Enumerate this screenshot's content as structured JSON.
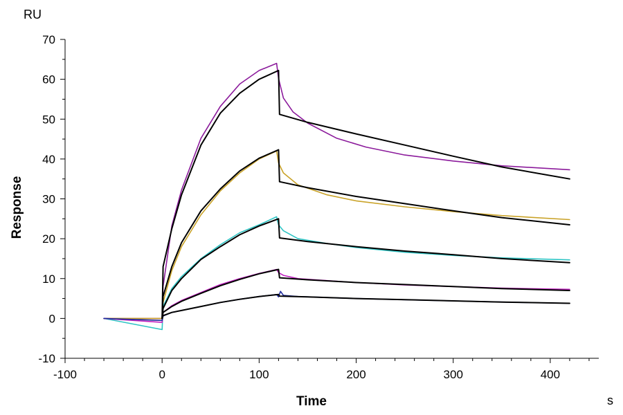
{
  "chart_data": {
    "type": "line",
    "title": "",
    "xlabel": "Time",
    "ylabel": "Response",
    "x_unit": "s",
    "y_unit": "RU",
    "xlim": [
      -100,
      450
    ],
    "ylim": [
      -10,
      70
    ],
    "x_ticks": [
      -100,
      0,
      100,
      200,
      300,
      400
    ],
    "y_ticks": [
      -10,
      0,
      10,
      20,
      30,
      40,
      50,
      60,
      70
    ],
    "x_tick_labels": [
      "-100",
      "0",
      "100",
      "200",
      "300",
      "400"
    ],
    "y_tick_labels": [
      "-10",
      "0",
      "10",
      "20",
      "30",
      "40",
      "50",
      "60",
      "70"
    ],
    "grid": false,
    "legend": "none",
    "series": [
      {
        "color": "#8B1A9B",
        "role": "measured",
        "points": [
          [
            -60,
            0
          ],
          [
            0,
            0
          ],
          [
            1,
            8
          ],
          [
            10,
            23.2
          ],
          [
            20,
            32.2
          ],
          [
            40,
            45.2
          ],
          [
            60,
            53.2
          ],
          [
            80,
            58.8
          ],
          [
            100,
            62.2
          ],
          [
            118,
            64
          ],
          [
            120,
            60.2
          ],
          [
            125,
            55.3
          ],
          [
            135,
            51.8
          ],
          [
            150,
            49
          ],
          [
            180,
            45.2
          ],
          [
            210,
            43
          ],
          [
            250,
            41
          ],
          [
            300,
            39.5
          ],
          [
            350,
            38.3
          ],
          [
            420,
            37.3
          ]
        ]
      },
      {
        "color": "#C9A227",
        "role": "measured",
        "points": [
          [
            -60,
            0
          ],
          [
            0,
            0
          ],
          [
            1,
            4
          ],
          [
            10,
            12
          ],
          [
            20,
            18
          ],
          [
            40,
            26
          ],
          [
            60,
            32
          ],
          [
            80,
            36.5
          ],
          [
            100,
            40
          ],
          [
            118,
            42
          ],
          [
            120,
            39
          ],
          [
            125,
            36.5
          ],
          [
            140,
            33.5
          ],
          [
            170,
            31
          ],
          [
            200,
            29.5
          ],
          [
            250,
            28
          ],
          [
            300,
            26.8
          ],
          [
            350,
            25.8
          ],
          [
            420,
            24.8
          ]
        ]
      },
      {
        "color": "#2EC4C4",
        "role": "measured",
        "points": [
          [
            -60,
            0
          ],
          [
            0,
            -2.8
          ],
          [
            1,
            3
          ],
          [
            10,
            7.5
          ],
          [
            20,
            10.5
          ],
          [
            40,
            15
          ],
          [
            60,
            18.5
          ],
          [
            80,
            21.5
          ],
          [
            100,
            23.5
          ],
          [
            118,
            25.5
          ],
          [
            120,
            23.5
          ],
          [
            125,
            22
          ],
          [
            140,
            20
          ],
          [
            170,
            18.8
          ],
          [
            200,
            17.8
          ],
          [
            250,
            16.6
          ],
          [
            300,
            15.8
          ],
          [
            350,
            15.2
          ],
          [
            420,
            14.7
          ]
        ]
      },
      {
        "color": "#C020C0",
        "role": "measured",
        "points": [
          [
            -60,
            0
          ],
          [
            0,
            -1
          ],
          [
            1,
            1.5
          ],
          [
            10,
            3.2
          ],
          [
            20,
            4.5
          ],
          [
            40,
            6.5
          ],
          [
            60,
            8.5
          ],
          [
            80,
            10
          ],
          [
            100,
            11.3
          ],
          [
            118,
            12.3
          ],
          [
            120,
            11.5
          ],
          [
            125,
            10.8
          ],
          [
            140,
            10
          ],
          [
            200,
            9
          ],
          [
            250,
            8.4
          ],
          [
            300,
            8
          ],
          [
            350,
            7.6
          ],
          [
            420,
            7.3
          ]
        ]
      },
      {
        "color": "#1E2A9C",
        "role": "measured",
        "points": [
          [
            -60,
            0
          ],
          [
            0,
            -0.5
          ],
          [
            1,
            0.6
          ],
          [
            10,
            1.5
          ],
          [
            20,
            2
          ],
          [
            40,
            3
          ],
          [
            60,
            4
          ],
          [
            80,
            4.8
          ],
          [
            100,
            5.5
          ],
          [
            118,
            6
          ],
          [
            120,
            5.4
          ],
          [
            122,
            6.8
          ],
          [
            125,
            5.8
          ],
          [
            140,
            5.5
          ],
          [
            200,
            5
          ],
          [
            250,
            4.7
          ],
          [
            300,
            4.4
          ],
          [
            350,
            4.1
          ],
          [
            420,
            3.8
          ]
        ]
      },
      {
        "color": "#000000",
        "role": "fit",
        "points": [
          [
            0,
            0
          ],
          [
            1,
            13
          ],
          [
            10,
            22.5
          ],
          [
            20,
            31
          ],
          [
            40,
            43.5
          ],
          [
            60,
            51.5
          ],
          [
            80,
            56.5
          ],
          [
            100,
            60
          ],
          [
            120,
            62.2
          ],
          [
            121,
            51.2
          ],
          [
            150,
            49.2
          ],
          [
            200,
            46.3
          ],
          [
            250,
            43.5
          ],
          [
            300,
            40.7
          ],
          [
            350,
            38
          ],
          [
            420,
            35
          ]
        ]
      },
      {
        "color": "#000000",
        "role": "fit",
        "points": [
          [
            0,
            0
          ],
          [
            1,
            5.5
          ],
          [
            10,
            13
          ],
          [
            20,
            19
          ],
          [
            40,
            27
          ],
          [
            60,
            32.5
          ],
          [
            80,
            37
          ],
          [
            100,
            40.2
          ],
          [
            120,
            42.3
          ],
          [
            121,
            34.3
          ],
          [
            150,
            32.8
          ],
          [
            200,
            30.6
          ],
          [
            250,
            28.8
          ],
          [
            300,
            27
          ],
          [
            350,
            25.3
          ],
          [
            420,
            23.5
          ]
        ]
      },
      {
        "color": "#000000",
        "role": "fit",
        "points": [
          [
            0,
            0
          ],
          [
            1,
            2.5
          ],
          [
            10,
            7
          ],
          [
            20,
            10
          ],
          [
            40,
            14.8
          ],
          [
            60,
            18
          ],
          [
            80,
            21
          ],
          [
            100,
            23.2
          ],
          [
            120,
            25
          ],
          [
            121,
            20.2
          ],
          [
            150,
            19.3
          ],
          [
            200,
            18
          ],
          [
            250,
            16.9
          ],
          [
            300,
            16
          ],
          [
            350,
            15
          ],
          [
            420,
            14
          ]
        ]
      },
      {
        "color": "#000000",
        "role": "fit",
        "points": [
          [
            0,
            0
          ],
          [
            1,
            1.5
          ],
          [
            10,
            3
          ],
          [
            20,
            4.3
          ],
          [
            40,
            6.3
          ],
          [
            60,
            8.2
          ],
          [
            80,
            9.8
          ],
          [
            100,
            11.2
          ],
          [
            120,
            12.3
          ],
          [
            121,
            10.2
          ],
          [
            150,
            9.7
          ],
          [
            200,
            9
          ],
          [
            250,
            8.5
          ],
          [
            300,
            8
          ],
          [
            350,
            7.5
          ],
          [
            420,
            7
          ]
        ]
      },
      {
        "color": "#000000",
        "role": "fit",
        "points": [
          [
            0,
            0
          ],
          [
            1,
            0.7
          ],
          [
            10,
            1.5
          ],
          [
            20,
            2
          ],
          [
            40,
            3
          ],
          [
            60,
            4
          ],
          [
            80,
            4.8
          ],
          [
            100,
            5.5
          ],
          [
            120,
            6
          ],
          [
            121,
            5.6
          ],
          [
            150,
            5.4
          ],
          [
            200,
            5
          ],
          [
            250,
            4.7
          ],
          [
            300,
            4.4
          ],
          [
            350,
            4.1
          ],
          [
            420,
            3.8
          ]
        ]
      }
    ]
  }
}
